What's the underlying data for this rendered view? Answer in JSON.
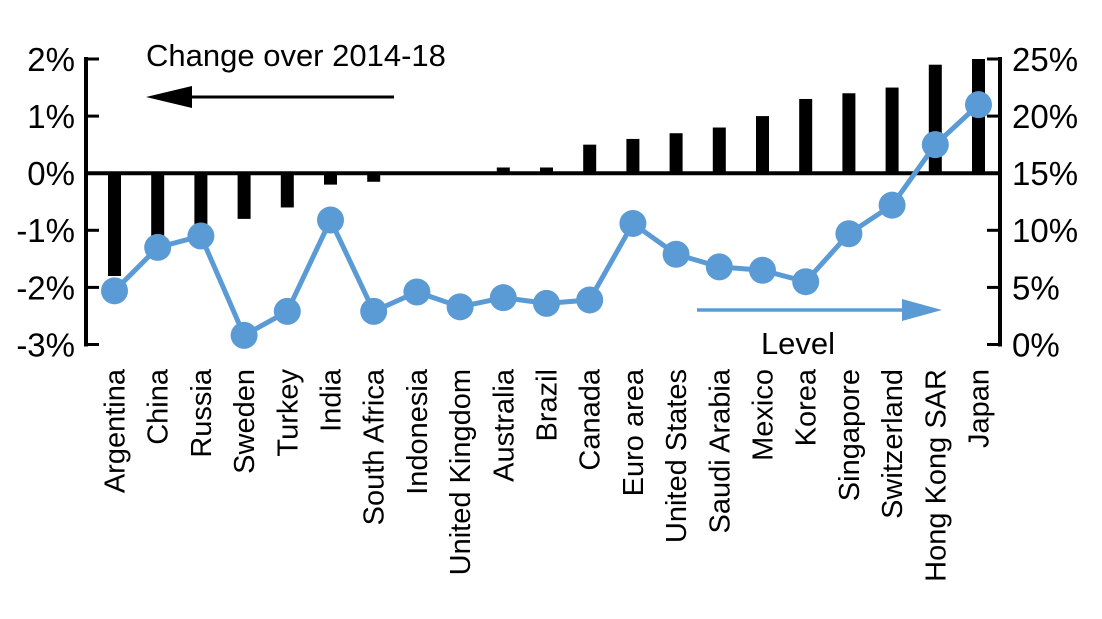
{
  "chart_data": {
    "type": "combo_bar_line",
    "title": "",
    "categories": [
      "Argentina",
      "China",
      "Russia",
      "Sweden",
      "Turkey",
      "India",
      "South Africa",
      "Indonesia",
      "United Kingdom",
      "Australia",
      "Brazil",
      "Canada",
      "Euro area",
      "United States",
      "Saudi Arabia",
      "Mexico",
      "Korea",
      "Singapore",
      "Switzerland",
      "Hong Kong SAR",
      "Japan"
    ],
    "series": [
      {
        "name": "Change over 2014-18",
        "type": "bar",
        "axis": "left",
        "color": "#000000",
        "values": [
          -1.8,
          -1.5,
          -1.3,
          -0.8,
          -0.6,
          -0.2,
          -0.15,
          0,
          0,
          0.1,
          0.1,
          0.5,
          0.6,
          0.7,
          0.8,
          1.0,
          1.3,
          1.4,
          1.5,
          1.9,
          2.0
        ]
      },
      {
        "name": "Level",
        "type": "line",
        "axis": "right",
        "color": "#5B9BD5",
        "values": [
          4.7,
          8.5,
          9.5,
          0.8,
          2.9,
          10.9,
          2.9,
          4.6,
          3.3,
          4.1,
          3.6,
          3.9,
          10.6,
          7.9,
          6.8,
          6.5,
          5.5,
          9.7,
          12.2,
          17.5,
          21.0
        ]
      }
    ],
    "left_axis": {
      "min": -3,
      "max": 2,
      "unit": "%",
      "tick_labels": [
        "2%",
        "1%",
        "0%",
        "-1%",
        "-2%",
        "-3%"
      ]
    },
    "right_axis": {
      "min": 0,
      "max": 25,
      "unit": "%",
      "tick_labels": [
        "25%",
        "20%",
        "15%",
        "10%",
        "5%",
        "0%"
      ]
    },
    "annotations": [
      {
        "text": "Change over 2014-18",
        "arrow": "left",
        "color": "#000000"
      },
      {
        "text": "Level",
        "arrow": "right",
        "color": "#5B9BD5"
      }
    ],
    "grid": false,
    "legend_position": "in-chart annotations"
  }
}
